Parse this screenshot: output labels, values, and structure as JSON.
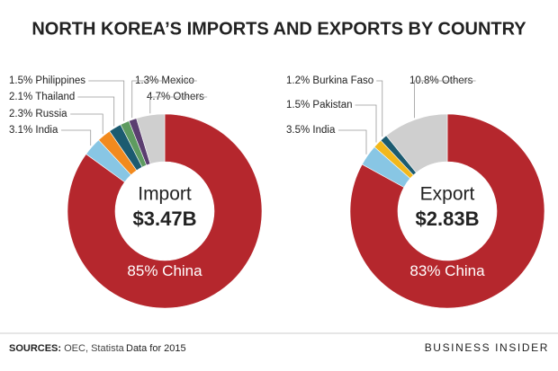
{
  "title": "NORTH KOREA’S IMPORTS AND EXPORTS BY COUNTRY",
  "chart_data": [
    {
      "type": "pie",
      "center_label": "Import",
      "total_label": "$3.47B",
      "categories": [
        "China",
        "India",
        "Russia",
        "Thailand",
        "Philippines",
        "Mexico",
        "Others"
      ],
      "values": [
        85,
        3.1,
        2.3,
        2.1,
        1.5,
        1.3,
        4.7
      ],
      "value_labels": [
        "85%",
        "3.1%",
        "2.3%",
        "2.1%",
        "1.5%",
        "1.3%",
        "4.7%"
      ],
      "colors": [
        "#b5272d",
        "#88c6e4",
        "#f28a1e",
        "#1c5b70",
        "#5e9b60",
        "#5b3e70",
        "#cfcfcf"
      ]
    },
    {
      "type": "pie",
      "center_label": "Export",
      "total_label": "$2.83B",
      "categories": [
        "China",
        "India",
        "Pakistan",
        "Burkina Faso",
        "Others"
      ],
      "values": [
        83,
        3.5,
        1.5,
        1.2,
        10.8
      ],
      "value_labels": [
        "83%",
        "3.5%",
        "1.5%",
        "1.2%",
        "10.8%"
      ],
      "colors": [
        "#b5272d",
        "#88c6e4",
        "#f2b81c",
        "#1c5b70",
        "#cfcfcf"
      ]
    }
  ],
  "source_label": "SOURCES:",
  "source": "OEC, Statista",
  "note": "Data for 2015",
  "brand": "BUSINESS INSIDER"
}
